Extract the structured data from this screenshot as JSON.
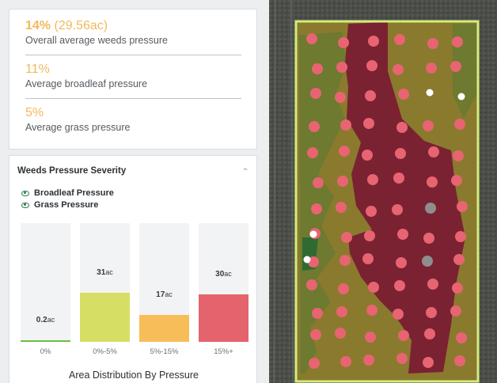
{
  "summary": {
    "overall": {
      "percent": "14%",
      "area": "(29.56ac)",
      "label": "Overall average weeds pressure"
    },
    "broadleaf": {
      "percent": "11%",
      "label": "Average broadleaf pressure"
    },
    "grass": {
      "percent": "5%",
      "label": "Average grass pressure"
    }
  },
  "severity": {
    "title": "Weeds Pressure Severity",
    "collapse_icon": "chevron-up-icon",
    "legend": [
      {
        "label": "Broadleaf Pressure",
        "icon": "eye-icon"
      },
      {
        "label": "Grass Pressure",
        "icon": "eye-icon"
      }
    ],
    "x_title": "Area Distribution By Pressure"
  },
  "chart_data": {
    "type": "bar",
    "categories": [
      "0%",
      "0%-5%",
      "5%-15%",
      "15%+"
    ],
    "values": [
      0.2,
      31,
      17,
      30
    ],
    "value_labels": [
      "0.2",
      "31",
      "17",
      "30"
    ],
    "unit": "ac",
    "colors": [
      "#6bbf47",
      "#d7de64",
      "#f6bd58",
      "#e5636c"
    ],
    "ylim": [
      0,
      75
    ],
    "xlabel": "Area Distribution By Pressure",
    "grid": false
  },
  "map": {
    "field_border_color": "#d4ec7a",
    "high_pressure_color": "#7a2231",
    "medium_pressure_color": "#9a7e2e",
    "sample_point_color": "#e86472"
  }
}
